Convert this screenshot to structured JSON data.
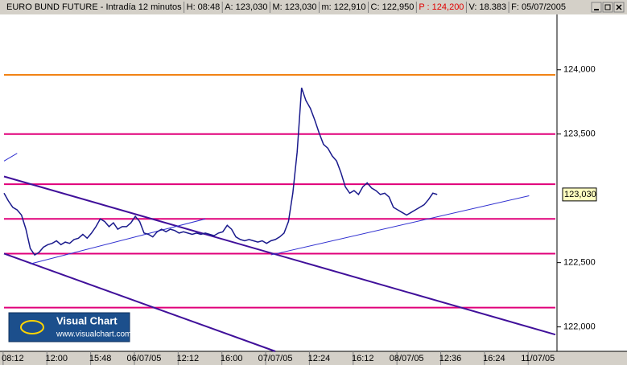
{
  "chart_data": {
    "type": "line",
    "title_parts": [
      {
        "text": "EURO BUND FUTURE - Intradía 12 minutos",
        "color": "#000000"
      },
      {
        "text": "H: 08:48",
        "color": "#000000"
      },
      {
        "text": "A: 123,030",
        "color": "#000000"
      },
      {
        "text": "M: 123,030",
        "color": "#000000"
      },
      {
        "text": "m: 122,910",
        "color": "#000000"
      },
      {
        "text": "C: 122,950",
        "color": "#000000"
      },
      {
        "text": "P : 124,200",
        "color": "#e00000"
      },
      {
        "text": "V: 18.383",
        "color": "#000000"
      },
      {
        "text": "F: 05/07/2005",
        "color": "#000000"
      }
    ],
    "categories": [
      null,
      null,
      "08:12",
      null,
      null,
      null,
      null,
      null,
      null,
      null,
      null,
      null,
      "12:00",
      null,
      null,
      null,
      null,
      null,
      null,
      null,
      null,
      null,
      "15:48",
      null,
      null,
      null,
      null,
      null,
      null,
      null,
      null,
      null,
      "06/07/05",
      null,
      null,
      null,
      null,
      null,
      null,
      null,
      null,
      null,
      "12:12",
      null,
      null,
      null,
      null,
      null,
      null,
      null,
      null,
      null,
      "16:00",
      null,
      null,
      null,
      null,
      null,
      null,
      null,
      null,
      null,
      "07/07/05",
      null,
      null,
      null,
      null,
      null,
      null,
      null,
      null,
      null,
      "12:24",
      null,
      null,
      null,
      null,
      null,
      null,
      null,
      null,
      null,
      "16:12",
      null,
      null,
      null,
      null,
      null,
      null,
      null,
      null,
      null,
      "08/07/05",
      null,
      null,
      null,
      null,
      null,
      null,
      null,
      null,
      null,
      "12:36",
      null,
      null,
      null,
      null,
      null,
      null,
      null,
      null,
      null,
      "16:24",
      null,
      null,
      null,
      null,
      null,
      null,
      null,
      null,
      null,
      "11/07/05",
      null,
      null,
      null,
      null
    ],
    "series": [
      {
        "color": "#1a1a8c",
        "values": [
          123.04,
          122.98,
          122.93,
          122.91,
          122.87,
          122.76,
          122.61,
          122.56,
          122.58,
          122.62,
          122.64,
          122.65,
          122.67,
          122.64,
          122.66,
          122.65,
          122.68,
          122.69,
          122.72,
          122.69,
          122.73,
          122.78,
          122.84,
          122.82,
          122.78,
          122.81,
          122.76,
          122.78,
          122.78,
          122.81,
          122.86,
          122.82,
          122.73,
          122.72,
          122.7,
          122.74,
          122.76,
          122.74,
          122.76,
          122.75,
          122.73,
          122.74,
          122.73,
          122.72,
          122.73,
          122.72,
          122.73,
          122.72,
          122.71,
          122.73,
          122.74,
          122.79,
          122.76,
          122.7,
          122.68,
          122.67,
          122.68,
          122.67,
          122.66,
          122.67,
          122.65,
          122.67,
          122.68,
          122.7,
          122.73,
          122.82,
          123.04,
          123.36,
          123.86,
          123.76,
          123.7,
          123.61,
          123.51,
          123.42,
          123.39,
          123.33,
          123.29,
          123.2,
          123.09,
          123.04,
          123.06,
          123.03,
          123.09,
          123.12,
          123.08,
          123.06,
          123.03,
          123.04,
          123.01,
          122.93,
          122.91,
          122.89,
          122.87,
          122.89,
          122.91,
          122.93,
          122.95,
          122.99,
          123.04,
          123.03,
          null,
          null,
          null,
          null,
          null,
          null,
          null,
          null,
          null,
          null,
          null,
          null,
          null,
          null,
          null,
          null,
          null,
          null,
          null,
          null,
          null,
          null,
          null,
          null,
          null,
          null,
          null
        ]
      }
    ],
    "ylim": [
      121.81,
      124.43
    ],
    "yticks": [
      {
        "value": 122,
        "label": "122,000"
      },
      {
        "value": 122.5,
        "label": "122,500"
      },
      {
        "value": 123.5,
        "label": "123,500"
      },
      {
        "value": 124,
        "label": "124,000"
      }
    ],
    "last_price": {
      "value": 123.03,
      "label": "123,030"
    },
    "levels": [
      {
        "value": 123.96,
        "color": "#f07800"
      },
      {
        "value": 123.5,
        "color": "#e0007a"
      },
      {
        "value": 123.11,
        "color": "#e0007a"
      },
      {
        "value": 122.84,
        "color": "#e0007a"
      },
      {
        "value": 122.57,
        "color": "#e0007a"
      },
      {
        "value": 122.15,
        "color": "#e0007a"
      }
    ],
    "trendlines": [
      {
        "x": [
          0,
          126
        ],
        "values": [
          123.17,
          121.94
        ],
        "color": "#40109a",
        "width": 2
      },
      {
        "x": [
          0,
          62
        ],
        "values": [
          122.57,
          121.81
        ],
        "color": "#40109a",
        "width": 2
      },
      {
        "x": [
          6,
          46
        ],
        "values": [
          122.49,
          122.84
        ],
        "color": "#3030d0",
        "width": 1
      },
      {
        "x": [
          61,
          120
        ],
        "values": [
          122.56,
          123.02
        ],
        "color": "#3030d0",
        "width": 1
      },
      {
        "x": [
          0,
          3
        ],
        "values": [
          123.29,
          123.35
        ],
        "color": "#3030d0",
        "width": 1
      }
    ],
    "logo": {
      "name": "Visual Chart",
      "url": "www.visualchart.com"
    }
  }
}
